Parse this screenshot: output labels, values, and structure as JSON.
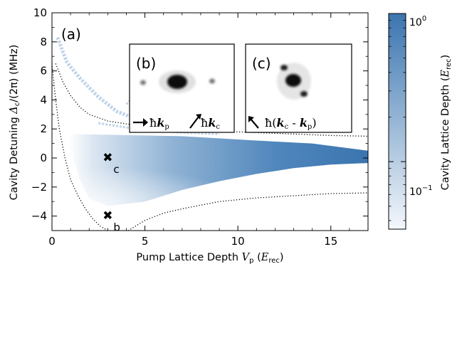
{
  "chart_data": {
    "type": "heatmap",
    "panel_label": "(a)",
    "xlabel": "Pump Lattice Depth",
    "xlabel_symbol": "V",
    "xlabel_sub": "p",
    "xlabel_unit_symbol": "E",
    "xlabel_unit_sub": "rec",
    "ylabel": "Cavity Detuning",
    "ylabel_symbol": "Δ",
    "ylabel_sub": "c",
    "ylabel_div": "/(2π)",
    "ylabel_unit": "(MHz)",
    "xlim": [
      0,
      17
    ],
    "ylim": [
      -5,
      10
    ],
    "xticks": [
      0,
      5,
      10,
      15
    ],
    "yticks": [
      -4,
      -2,
      0,
      2,
      4,
      6,
      8,
      10
    ],
    "colorbar": {
      "label": "Cavity Lattice Depth",
      "unit_symbol": "E",
      "unit_sub": "rec",
      "scale": "log",
      "range": [
        0.035,
        1.0
      ],
      "ticks": [
        "10",
        "10"
      ],
      "tick_exponents": [
        "0",
        "−1"
      ],
      "tick_values": [
        1.0,
        0.1
      ],
      "color_low": "#f3f7fb",
      "color_high": "#3b75af"
    },
    "boundaries": {
      "style": "dotted",
      "upper": [
        [
          0.2,
          6.5
        ],
        [
          0.6,
          5.2
        ],
        [
          1.0,
          4.3
        ],
        [
          1.5,
          3.5
        ],
        [
          2.0,
          3.0
        ],
        [
          3.0,
          2.55
        ],
        [
          4.0,
          2.35
        ],
        [
          5.0,
          2.2
        ],
        [
          7.0,
          2.0
        ],
        [
          9.0,
          1.85
        ],
        [
          11.0,
          1.75
        ],
        [
          13.0,
          1.65
        ],
        [
          15.0,
          1.55
        ],
        [
          17.0,
          1.5
        ]
      ],
      "lower": [
        [
          0.0,
          6.5
        ],
        [
          0.2,
          4.0
        ],
        [
          0.4,
          2.0
        ],
        [
          0.7,
          0.0
        ],
        [
          1.0,
          -1.5
        ],
        [
          1.4,
          -2.6
        ],
        [
          1.8,
          -3.5
        ],
        [
          2.2,
          -4.2
        ],
        [
          2.6,
          -4.7
        ],
        [
          3.0,
          -5.0
        ]
      ],
      "lower_right": [
        [
          4.1,
          -5.0
        ],
        [
          5.0,
          -4.3
        ],
        [
          6.0,
          -3.8
        ],
        [
          7.0,
          -3.5
        ],
        [
          9.0,
          -3.0
        ],
        [
          11.0,
          -2.75
        ],
        [
          13.0,
          -2.6
        ],
        [
          15.0,
          -2.45
        ],
        [
          17.0,
          -2.4
        ]
      ]
    },
    "region": {
      "top": [
        [
          0.9,
          1.65
        ],
        [
          3.0,
          1.6
        ],
        [
          7.0,
          1.5
        ],
        [
          11.0,
          1.2
        ],
        [
          14.0,
          1.0
        ],
        [
          17.0,
          0.5
        ]
      ],
      "bottom": [
        [
          0.9,
          1.0
        ],
        [
          1.5,
          -1.5
        ],
        [
          2.0,
          -2.8
        ],
        [
          3.0,
          -3.3
        ],
        [
          5.0,
          -3.0
        ],
        [
          7.0,
          -2.2
        ],
        [
          9.0,
          -1.6
        ],
        [
          11.0,
          -1.1
        ],
        [
          13.0,
          -0.7
        ],
        [
          15.0,
          -0.45
        ],
        [
          17.0,
          -0.35
        ]
      ],
      "peak_region": [
        [
          5.0,
          0.0
        ],
        [
          17.0,
          0.1
        ]
      ]
    },
    "bands": [
      [
        [
          0.3,
          8.3
        ],
        [
          0.8,
          6.6
        ],
        [
          1.5,
          5.5
        ],
        [
          2.5,
          4.2
        ],
        [
          3.5,
          3.2
        ],
        [
          4.5,
          2.7
        ],
        [
          5.5,
          2.35
        ],
        [
          7.0,
          2.1
        ],
        [
          8.0,
          1.9
        ]
      ],
      [
        [
          2.5,
          2.4
        ],
        [
          4.0,
          2.1
        ],
        [
          5.5,
          1.9
        ],
        [
          7.0,
          1.75
        ],
        [
          9.0,
          1.65
        ]
      ],
      [
        [
          4.0,
          3.7
        ],
        [
          4.6,
          4.5
        ]
      ]
    ],
    "markers": [
      {
        "x": 3.0,
        "y": 0.0,
        "label": "c"
      },
      {
        "x": 3.0,
        "y": -4.0,
        "label": "b"
      }
    ],
    "insets": [
      {
        "label": "(b)",
        "caption_parts": [
          "ħ",
          "k",
          "p",
          "ħ",
          "k",
          "c"
        ],
        "spots": "horizontal"
      },
      {
        "label": "(c)",
        "caption_parts": [
          "ħ(",
          "k",
          "c",
          " - ",
          "k",
          "p",
          ")"
        ],
        "spots": "diagonal"
      }
    ]
  }
}
